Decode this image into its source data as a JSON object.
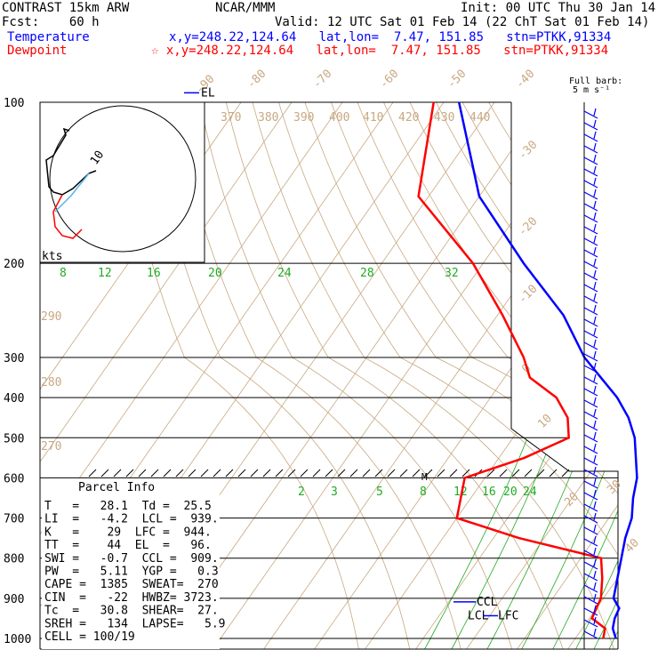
{
  "header": {
    "model": "CONTRAST 15km ARW",
    "center": "NCAR/MMM",
    "init": "Init: 00 UTC Thu 30 Jan 14",
    "fcst": "Fcst:    60 h",
    "valid": "Valid: 12 UTC Sat 01 Feb 14 (22 ChT Sat 01 Feb 14)",
    "temp_label": "Temperature",
    "temp_info": "x,y=248.22,124.64   lat,lon=  7.47, 151.85   stn=PTKK,91334",
    "dew_label": "Dewpoint",
    "dew_info": "☆ x,y=248.22,124.64   lat,lon=  7.47, 151.85   stn=PTKK,91334"
  },
  "colors": {
    "temperature": "#0000ff",
    "dewpoint": "#ff0000",
    "isotherm": "#c8a882",
    "mixing": "#22aa22",
    "wind": "#0000ff"
  },
  "hodograph": {
    "units": "kts",
    "ring_label": "10"
  },
  "full_barb_note": [
    "Full barb:",
    "5 m s⁻¹"
  ],
  "parcel_title": "Parcel Info",
  "parcel_rows": [
    "T   =   28.1  Td =  25.5",
    "LI  =   -4.2  LCL =  939.",
    "K   =    29  LFC =  944.",
    "TT  =    44  EL  =   96.",
    "SWI =   -0.7  CCL =  909.",
    "PW  =   5.11  YGP =   0.3",
    "CAPE =  1385  SWEAT=  270",
    "CIN  =   -22  HWBZ= 3723.",
    "Tc  =   30.8  SHEAR=  27.",
    "SREH =   134  LAPSE=   5.9",
    "CELL = 100/19"
  ],
  "level_labels": {
    "el": "EL",
    "ccl": "CCL",
    "lcl": "LCL",
    "lfc": "LFC",
    "m": "M"
  },
  "chart_data": {
    "type": "line",
    "title": "",
    "ylabel": "",
    "pressure_ticks": [
      100,
      200,
      300,
      400,
      500,
      600,
      700,
      800,
      900,
      1000
    ],
    "isotherm_labels": [
      "-90",
      "-80",
      "-70",
      "-60",
      "-50",
      "-40",
      "-30",
      "-20",
      "-10",
      "0",
      "10",
      "20",
      "30",
      "40"
    ],
    "theta_labels": [
      "370",
      "380",
      "390",
      "400",
      "410",
      "420",
      "430",
      "440",
      "290",
      "280",
      "270"
    ],
    "mixing_ratio_labels_upper": [
      "8",
      "12",
      "16",
      "20",
      "24",
      "28",
      "32"
    ],
    "mixing_ratio_labels_lower": [
      "2",
      "3",
      "5",
      "8",
      "12",
      "16",
      "20",
      "24"
    ],
    "series": [
      {
        "name": "Temperature",
        "pressure": [
          1000,
          975,
          950,
          925,
          900,
          850,
          800,
          750,
          700,
          650,
          600,
          550,
          500,
          450,
          400,
          350,
          300,
          250,
          200,
          150,
          100
        ],
        "values": [
          28,
          26,
          25,
          24.5,
          22,
          20,
          18,
          16,
          14.5,
          12,
          10,
          7,
          4,
          0,
          -5,
          -11,
          -17,
          -27,
          -42,
          -60,
          -77
        ]
      },
      {
        "name": "Dewpoint",
        "pressure": [
          1000,
          975,
          950,
          925,
          900,
          850,
          800,
          750,
          700,
          650,
          600,
          550,
          500,
          450,
          400,
          350,
          300,
          250,
          200,
          150,
          100
        ],
        "values": [
          25.5,
          24.5,
          20.5,
          20,
          19.5,
          17,
          14,
          -5,
          -20,
          -22,
          -24,
          -15,
          -9,
          -12,
          -17,
          -25,
          -29,
          -39,
          -52,
          -72,
          -82
        ]
      }
    ]
  }
}
